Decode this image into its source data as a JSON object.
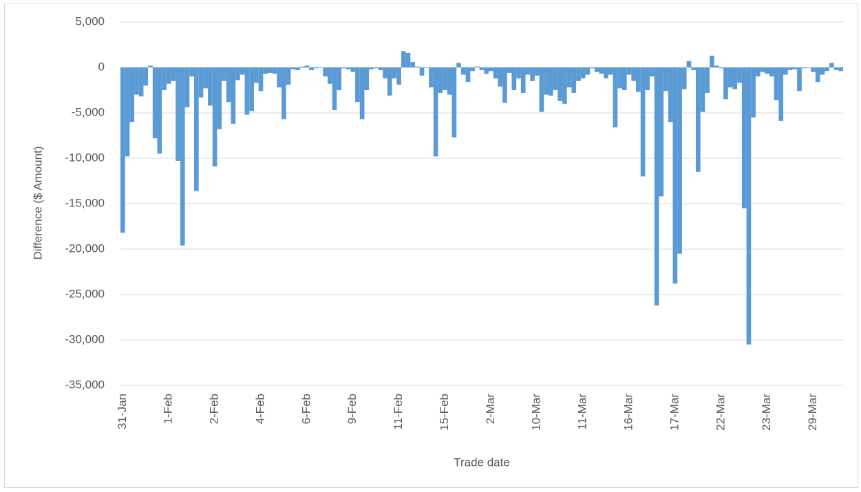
{
  "chart_data": {
    "type": "bar",
    "y_label": "Difference ($ Amount)",
    "x_label": "Trade date",
    "color": "#5b9bd5",
    "grid": true,
    "ylim": [
      -35000,
      5000
    ],
    "yticks": [
      {
        "value": -35000,
        "label": "-35,000"
      },
      {
        "value": -30000,
        "label": "-30,000"
      },
      {
        "value": -25000,
        "label": "-25,000"
      },
      {
        "value": -20000,
        "label": "-20,000"
      },
      {
        "value": -15000,
        "label": "-15,000"
      },
      {
        "value": -10000,
        "label": "-10,000"
      },
      {
        "value": -5000,
        "label": "-5,000"
      },
      0,
      {
        "value": 5000,
        "label": "5,000"
      }
    ],
    "categories": [
      "31-Jan",
      null,
      null,
      null,
      null,
      null,
      null,
      null,
      null,
      null,
      "1-Feb",
      null,
      null,
      null,
      null,
      null,
      null,
      null,
      null,
      null,
      "2-Feb",
      null,
      null,
      null,
      null,
      null,
      null,
      null,
      null,
      null,
      "4-Feb",
      null,
      null,
      null,
      null,
      null,
      null,
      null,
      null,
      null,
      "6-Feb",
      null,
      null,
      null,
      null,
      null,
      null,
      null,
      null,
      null,
      "9-Feb",
      null,
      null,
      null,
      null,
      null,
      null,
      null,
      null,
      null,
      "11-Feb",
      null,
      null,
      null,
      null,
      null,
      null,
      null,
      null,
      null,
      "15-Feb",
      null,
      null,
      null,
      null,
      null,
      null,
      null,
      null,
      null,
      "2-Mar",
      null,
      null,
      null,
      null,
      null,
      null,
      null,
      null,
      null,
      "10-Mar",
      null,
      null,
      null,
      null,
      null,
      null,
      null,
      null,
      null,
      "11-Mar",
      null,
      null,
      null,
      null,
      null,
      null,
      null,
      null,
      null,
      "16-Mar",
      null,
      null,
      null,
      null,
      null,
      null,
      null,
      null,
      null,
      "17-Mar",
      null,
      null,
      null,
      null,
      null,
      null,
      null,
      null,
      null,
      "22-Mar",
      null,
      null,
      null,
      null,
      null,
      null,
      null,
      null,
      null,
      "23-Mar",
      null,
      null,
      null,
      null,
      null,
      null,
      null,
      null,
      null,
      "29-Mar",
      null,
      null,
      null,
      null,
      null,
      null
    ],
    "values": [
      -18200,
      -9800,
      -6000,
      -3000,
      -3200,
      -2000,
      200,
      -7800,
      -9500,
      -2500,
      -1800,
      -1500,
      -10300,
      -19600,
      -4400,
      -1000,
      -13600,
      -3300,
      -2300,
      -4200,
      -10900,
      -6800,
      -1500,
      -3800,
      -6200,
      -1400,
      -800,
      -5200,
      -4800,
      -1700,
      -2600,
      -700,
      -600,
      -700,
      -2200,
      -5700,
      -1900,
      -200,
      -300,
      100,
      200,
      -300,
      -100,
      -50,
      -1000,
      -1800,
      -4700,
      -2500,
      -100,
      -200,
      -500,
      -3800,
      -5700,
      -2500,
      -200,
      -100,
      -300,
      -1200,
      -3100,
      -1200,
      -1900,
      1800,
      1600,
      600,
      100,
      -900,
      -50,
      -2200,
      -9800,
      -2800,
      -2500,
      -3000,
      -7700,
      500,
      -800,
      -1600,
      -400,
      100,
      -300,
      -700,
      -400,
      -1200,
      -2100,
      -3900,
      -600,
      -2500,
      -1200,
      -2800,
      -800,
      -1500,
      -900,
      -4900,
      -3000,
      -3100,
      -2500,
      -3700,
      -4000,
      -2200,
      -2800,
      -1500,
      -1200,
      -800,
      -100,
      -500,
      -700,
      -1200,
      -800,
      -6600,
      -2300,
      -2500,
      -800,
      -1500,
      -2700,
      -12000,
      -2500,
      -1000,
      -26200,
      -14200,
      -2600,
      -6000,
      -23800,
      -20500,
      -2400,
      700,
      -300,
      -11500,
      -4900,
      -2800,
      1300,
      200,
      -100,
      -3500,
      -2200,
      -2400,
      -1700,
      -15500,
      -30500,
      -5500,
      -1000,
      -500,
      -700,
      -1000,
      -3600,
      -5900,
      -800,
      -300,
      -200,
      -2600,
      -100,
      -50,
      -500,
      -1600,
      -800,
      -400,
      500,
      -300,
      -400
    ]
  }
}
